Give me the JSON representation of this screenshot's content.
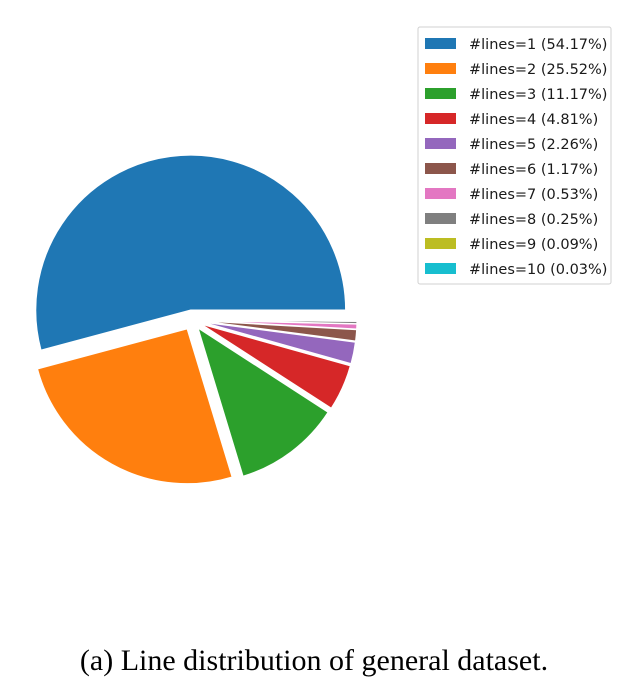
{
  "chart_data": {
    "type": "pie",
    "categories": [
      "#lines=1 (54.17%)",
      "#lines=2 (25.52%)",
      "#lines=3 (11.17%)",
      "#lines=4 (4.81%)",
      "#lines=5 (2.26%)",
      "#lines=6 (1.17%)",
      "#lines=7 (0.53%)",
      "#lines=8 (0.25%)",
      "#lines=9 (0.09%)",
      "#lines=10 (0.03%)"
    ],
    "values": [
      54.17,
      25.52,
      11.17,
      4.81,
      2.26,
      1.17,
      0.53,
      0.25,
      0.09,
      0.03
    ],
    "colors": [
      "#1f77b4",
      "#ff7f0e",
      "#2ca02c",
      "#d62728",
      "#9467bd",
      "#8c564b",
      "#e377c2",
      "#7f7f7f",
      "#bcbd22",
      "#17becf"
    ],
    "legend_position": "top-right",
    "exploded": true
  },
  "caption": "(a) Line distribution of general dataset."
}
